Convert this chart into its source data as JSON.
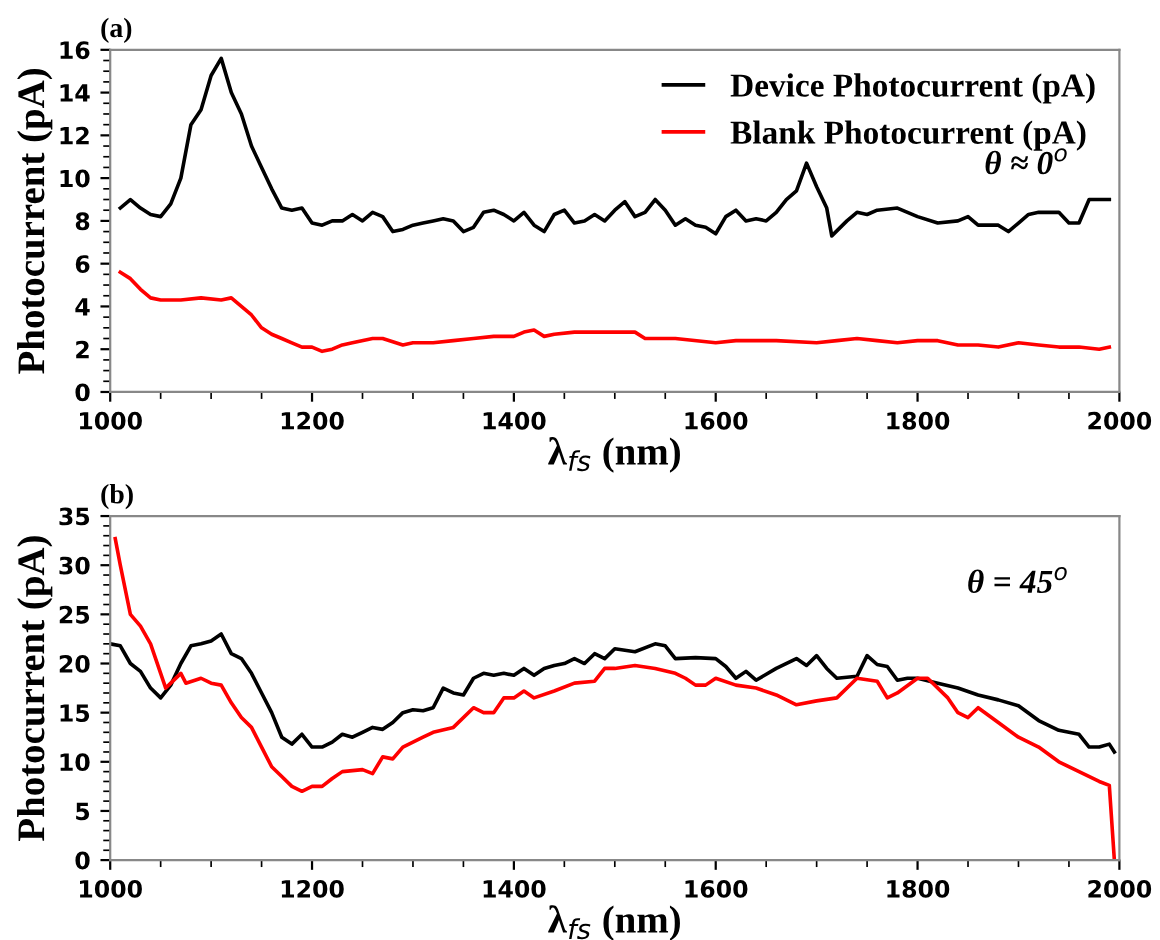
{
  "chart_data": [
    {
      "type": "line",
      "xlabel": "λ$_{fs}$ (nm)",
      "ylabel": "Photocurrent (pA)",
      "xlim": [
        1000,
        2000
      ],
      "xticks": [
        1000,
        1200,
        1400,
        1600,
        1800,
        2000
      ],
      "ylim": [
        0,
        16
      ],
      "yticks": [
        0,
        2,
        4,
        6,
        8,
        10,
        12,
        14,
        16
      ],
      "legend": "top right",
      "annotations": [
        "(a)",
        "θ ≈ 0$^{o}$"
      ],
      "series": [
        {
          "name": "Device Photocurrent (pA)",
          "color": "#000000",
          "x": [
            1010,
            1020,
            1030,
            1040,
            1050,
            1060,
            1070,
            1080,
            1090,
            1100,
            1110,
            1120,
            1130,
            1140,
            1150,
            1160,
            1170,
            1180,
            1190,
            1200,
            1210,
            1220,
            1230,
            1240,
            1250,
            1260,
            1270,
            1280,
            1290,
            1300,
            1310,
            1320,
            1330,
            1340,
            1350,
            1360,
            1370,
            1380,
            1390,
            1400,
            1410,
            1420,
            1430,
            1440,
            1450,
            1460,
            1470,
            1480,
            1490,
            1500,
            1510,
            1520,
            1530,
            1540,
            1550,
            1560,
            1570,
            1580,
            1590,
            1600,
            1610,
            1620,
            1630,
            1640,
            1650,
            1660,
            1670,
            1680,
            1690,
            1700,
            1710,
            1715,
            1730,
            1740,
            1750,
            1760,
            1780,
            1800,
            1820,
            1840,
            1850,
            1860,
            1880,
            1890,
            1900,
            1910,
            1920,
            1940,
            1950,
            1960,
            1970,
            1980,
            1990
          ],
          "values": [
            8.6,
            9.0,
            8.6,
            8.3,
            8.2,
            8.8,
            10,
            12.5,
            13.2,
            14.8,
            15.6,
            14,
            13,
            11.5,
            10.5,
            9.5,
            8.6,
            8.5,
            8.6,
            7.9,
            7.8,
            8.0,
            8.0,
            8.3,
            8.0,
            8.4,
            8.2,
            7.5,
            7.6,
            7.8,
            7.9,
            8.0,
            8.1,
            8.0,
            7.5,
            7.7,
            8.4,
            8.5,
            8.3,
            8.0,
            8.4,
            7.8,
            7.5,
            8.3,
            8.5,
            7.9,
            8.0,
            8.3,
            8.0,
            8.5,
            8.9,
            8.2,
            8.4,
            9.0,
            8.5,
            7.8,
            8.1,
            7.8,
            7.7,
            7.4,
            8.2,
            8.5,
            8.0,
            8.1,
            8.0,
            8.4,
            9.0,
            9.4,
            10.7,
            9.6,
            8.6,
            7.3,
            8.0,
            8.4,
            8.3,
            8.5,
            8.6,
            8.2,
            7.9,
            8.0,
            8.2,
            7.8,
            7.8,
            7.5,
            7.9,
            8.3,
            8.4,
            8.4,
            7.9,
            7.9,
            9.0,
            9.0,
            9.0
          ]
        },
        {
          "name": "Blank Photocurrent (pA)",
          "color": "#ff0000",
          "x": [
            1010,
            1020,
            1030,
            1040,
            1050,
            1070,
            1090,
            1110,
            1120,
            1130,
            1140,
            1150,
            1160,
            1170,
            1180,
            1190,
            1200,
            1210,
            1220,
            1230,
            1240,
            1260,
            1270,
            1290,
            1300,
            1320,
            1340,
            1360,
            1380,
            1400,
            1410,
            1420,
            1430,
            1440,
            1460,
            1480,
            1500,
            1520,
            1530,
            1560,
            1600,
            1620,
            1660,
            1700,
            1720,
            1740,
            1760,
            1780,
            1800,
            1820,
            1840,
            1860,
            1880,
            1900,
            1920,
            1940,
            1960,
            1980,
            1990
          ],
          "values": [
            5.6,
            5.3,
            4.8,
            4.4,
            4.3,
            4.3,
            4.4,
            4.3,
            4.4,
            4.0,
            3.6,
            3.0,
            2.7,
            2.5,
            2.3,
            2.1,
            2.1,
            1.9,
            2.0,
            2.2,
            2.3,
            2.5,
            2.5,
            2.2,
            2.3,
            2.3,
            2.4,
            2.5,
            2.6,
            2.6,
            2.8,
            2.9,
            2.6,
            2.7,
            2.8,
            2.8,
            2.8,
            2.8,
            2.5,
            2.5,
            2.3,
            2.4,
            2.4,
            2.3,
            2.4,
            2.5,
            2.4,
            2.3,
            2.4,
            2.4,
            2.2,
            2.2,
            2.1,
            2.3,
            2.2,
            2.1,
            2.1,
            2.0,
            2.1
          ]
        }
      ]
    },
    {
      "type": "line",
      "xlabel": "λ$_{fs}$ (nm)",
      "ylabel": "Photocurrent (pA)",
      "xlim": [
        1000,
        2000
      ],
      "xticks": [
        1000,
        1200,
        1400,
        1600,
        1800,
        2000
      ],
      "ylim": [
        0,
        35
      ],
      "yticks": [
        0,
        5,
        10,
        15,
        20,
        25,
        30,
        35
      ],
      "annotations": [
        "(b)",
        "θ = 45$^{o}$"
      ],
      "series": [
        {
          "color": "#000000",
          "x": [
            1000,
            1010,
            1020,
            1030,
            1040,
            1050,
            1060,
            1070,
            1080,
            1090,
            1100,
            1110,
            1120,
            1130,
            1140,
            1150,
            1160,
            1170,
            1180,
            1190,
            1200,
            1210,
            1220,
            1230,
            1240,
            1250,
            1260,
            1270,
            1280,
            1290,
            1300,
            1310,
            1320,
            1330,
            1340,
            1350,
            1360,
            1370,
            1380,
            1390,
            1400,
            1410,
            1420,
            1430,
            1440,
            1450,
            1460,
            1470,
            1480,
            1490,
            1500,
            1520,
            1540,
            1550,
            1560,
            1580,
            1600,
            1610,
            1620,
            1630,
            1640,
            1660,
            1680,
            1690,
            1700,
            1710,
            1720,
            1740,
            1750,
            1760,
            1770,
            1780,
            1790,
            1800,
            1820,
            1840,
            1860,
            1880,
            1900,
            1920,
            1940,
            1960,
            1970,
            1980,
            1990,
            1995
          ],
          "values": [
            22,
            21.8,
            20,
            19.2,
            17.5,
            16.5,
            17.8,
            20,
            21.8,
            22,
            22.3,
            23,
            21,
            20.5,
            19,
            17,
            15,
            12.5,
            11.8,
            12.8,
            11.5,
            11.5,
            12,
            12.8,
            12.5,
            13,
            13.5,
            13.3,
            14,
            15,
            15.3,
            15.2,
            15.5,
            17.5,
            17,
            16.8,
            18.5,
            19,
            18.8,
            19,
            18.8,
            19.5,
            18.8,
            19.5,
            19.8,
            20,
            20.5,
            20,
            21,
            20.5,
            21.5,
            21.2,
            22,
            21.8,
            20.5,
            20.6,
            20.5,
            19.7,
            18.5,
            19.2,
            18.3,
            19.5,
            20.5,
            19.8,
            20.8,
            19.5,
            18.5,
            18.7,
            20.8,
            19.9,
            19.7,
            18.3,
            18.5,
            18.5,
            18,
            17.5,
            16.8,
            16.3,
            15.7,
            14.2,
            13.2,
            12.8,
            11.5,
            11.5,
            11.8,
            11.0
          ]
        },
        {
          "color": "#ff0000",
          "x": [
            1005,
            1010,
            1020,
            1030,
            1040,
            1050,
            1055,
            1060,
            1070,
            1075,
            1090,
            1100,
            1110,
            1120,
            1130,
            1140,
            1150,
            1160,
            1170,
            1180,
            1190,
            1200,
            1210,
            1220,
            1230,
            1250,
            1260,
            1270,
            1280,
            1290,
            1300,
            1310,
            1320,
            1340,
            1360,
            1370,
            1380,
            1390,
            1400,
            1410,
            1420,
            1440,
            1460,
            1480,
            1490,
            1500,
            1520,
            1540,
            1560,
            1570,
            1580,
            1590,
            1600,
            1620,
            1640,
            1660,
            1680,
            1700,
            1720,
            1740,
            1760,
            1770,
            1780,
            1800,
            1810,
            1830,
            1840,
            1850,
            1860,
            1880,
            1900,
            1920,
            1940,
            1960,
            1980,
            1990,
            1995
          ],
          "values": [
            32.7,
            30,
            25,
            23.8,
            22,
            19,
            17.5,
            18,
            19,
            18,
            18.5,
            18,
            17.8,
            16,
            14.5,
            13.5,
            11.5,
            9.5,
            8.5,
            7.5,
            7,
            7.5,
            7.5,
            8.3,
            9,
            9.2,
            8.8,
            10.5,
            10.3,
            11.5,
            12,
            12.5,
            13,
            13.5,
            15.5,
            15,
            15,
            16.5,
            16.5,
            17.2,
            16.5,
            17.2,
            18,
            18.2,
            19.5,
            19.5,
            19.8,
            19.5,
            19,
            18.5,
            17.8,
            17.8,
            18.5,
            17.8,
            17.5,
            16.8,
            15.8,
            16.2,
            16.5,
            18.5,
            18.2,
            16.5,
            17,
            18.5,
            18.5,
            16.5,
            15,
            14.5,
            15.5,
            14,
            12.5,
            11.5,
            10,
            9,
            8,
            7.6,
            0
          ]
        }
      ]
    }
  ]
}
